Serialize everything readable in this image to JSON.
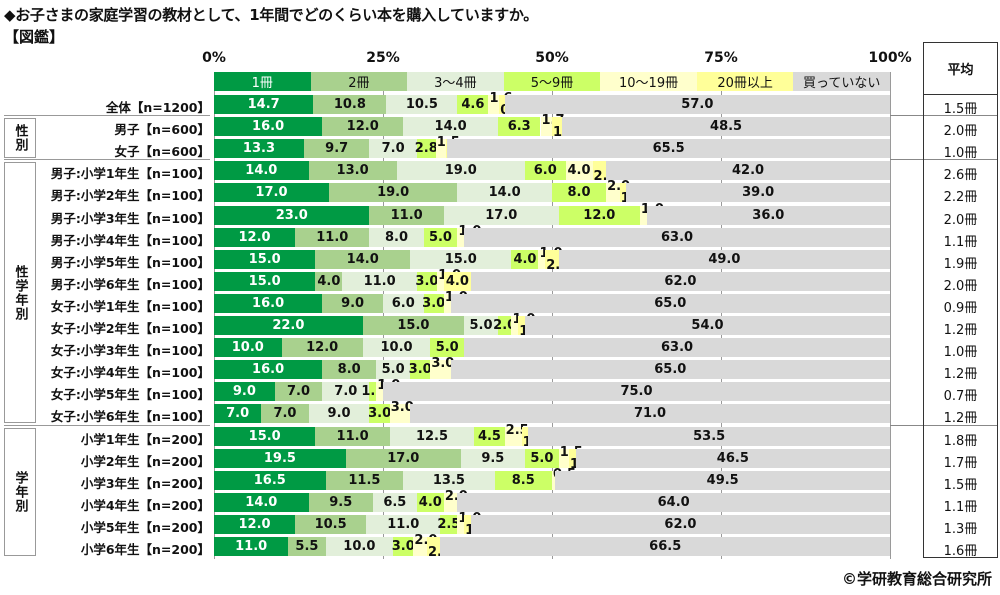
{
  "chart_data": {
    "type": "bar",
    "orientation": "horizontal-stacked-100",
    "title": "◆お子さまの家庭学習の教材として、1年間でどのくらい本を購入していますか。",
    "subtitle": "【図鑑】",
    "xlabel": "",
    "ylabel": "",
    "xlim": [
      0,
      100
    ],
    "x_ticks": [
      "0%",
      "25%",
      "50%",
      "75%",
      "100%"
    ],
    "grid": true,
    "legend_position": "top",
    "series": [
      {
        "name": "1冊",
        "color": "#009a44",
        "text_color": "#ffffff"
      },
      {
        "name": "2冊",
        "color": "#a9d18e",
        "text_color": "#111111"
      },
      {
        "name": "3～4冊",
        "color": "#e2efda",
        "text_color": "#111111"
      },
      {
        "name": "5～9冊",
        "color": "#ccff66",
        "text_color": "#111111"
      },
      {
        "name": "10～19冊",
        "color": "#ffffcc",
        "text_color": "#111111"
      },
      {
        "name": "20冊以上",
        "color": "#ffff99",
        "text_color": "#111111"
      },
      {
        "name": "買っていない",
        "color": "#d9d9d9",
        "text_color": "#111111"
      }
    ],
    "avg_header": "平均",
    "groups": [
      {
        "name": "",
        "rows": [
          0
        ]
      },
      {
        "name": "性別",
        "rows": [
          1,
          2
        ]
      },
      {
        "name": "性学年別",
        "rows": [
          3,
          4,
          5,
          6,
          7,
          8,
          9,
          10,
          11,
          12,
          13,
          14
        ]
      },
      {
        "name": "学年別",
        "rows": [
          15,
          16,
          17,
          18,
          19,
          20
        ]
      }
    ],
    "rows": [
      {
        "label": "全体【n=1200】",
        "values": [
          14.7,
          10.8,
          10.5,
          4.6,
          1.6,
          0.8,
          57.0
        ],
        "avg": "1.5冊"
      },
      {
        "label": "男子【n=600】",
        "values": [
          16.0,
          12.0,
          14.0,
          6.3,
          1.7,
          1.5,
          48.5
        ],
        "avg": "2.0冊"
      },
      {
        "label": "女子【n=600】",
        "values": [
          13.3,
          9.7,
          7.0,
          2.8,
          1.5,
          0.2,
          65.5
        ],
        "avg": "1.0冊"
      },
      {
        "label": "男子:小学1年生【n=100】",
        "values": [
          14.0,
          13.0,
          19.0,
          6.0,
          4.0,
          2.0,
          42.0
        ],
        "avg": "2.6冊"
      },
      {
        "label": "男子:小学2年生【n=100】",
        "values": [
          17.0,
          19.0,
          14.0,
          8.0,
          2.0,
          1.0,
          39.0
        ],
        "avg": "2.2冊"
      },
      {
        "label": "男子:小学3年生【n=100】",
        "values": [
          23.0,
          11.0,
          17.0,
          12.0,
          1.0,
          0.0,
          36.0
        ],
        "avg": "2.0冊"
      },
      {
        "label": "男子:小学4年生【n=100】",
        "values": [
          12.0,
          11.0,
          8.0,
          5.0,
          1.0,
          0.0,
          63.0
        ],
        "avg": "1.1冊"
      },
      {
        "label": "男子:小学5年生【n=100】",
        "values": [
          15.0,
          14.0,
          15.0,
          4.0,
          1.0,
          2.0,
          49.0
        ],
        "avg": "1.9冊"
      },
      {
        "label": "男子:小学6年生【n=100】",
        "values": [
          15.0,
          4.0,
          11.0,
          3.0,
          1.0,
          4.0,
          62.0
        ],
        "avg": "2.0冊"
      },
      {
        "label": "女子:小学1年生【n=100】",
        "values": [
          16.0,
          9.0,
          6.0,
          3.0,
          1.0,
          0.0,
          65.0
        ],
        "avg": "0.9冊"
      },
      {
        "label": "女子:小学2年生【n=100】",
        "values": [
          22.0,
          15.0,
          5.0,
          2.0,
          1.0,
          1.0,
          54.0
        ],
        "avg": "1.2冊"
      },
      {
        "label": "女子:小学3年生【n=100】",
        "values": [
          10.0,
          12.0,
          10.0,
          5.0,
          0.0,
          0.0,
          63.0
        ],
        "avg": "1.0冊"
      },
      {
        "label": "女子:小学4年生【n=100】",
        "values": [
          16.0,
          8.0,
          5.0,
          3.0,
          3.0,
          0.0,
          65.0
        ],
        "avg": "1.2冊"
      },
      {
        "label": "女子:小学5年生【n=100】",
        "values": [
          9.0,
          7.0,
          7.0,
          1.0,
          1.0,
          0.0,
          75.0
        ],
        "avg": "0.7冊"
      },
      {
        "label": "女子:小学6年生【n=100】",
        "values": [
          7.0,
          7.0,
          9.0,
          3.0,
          3.0,
          0.0,
          71.0
        ],
        "avg": "1.2冊"
      },
      {
        "label": "小学1年生【n=200】",
        "values": [
          15.0,
          11.0,
          12.5,
          4.5,
          2.5,
          1.0,
          53.5
        ],
        "avg": "1.8冊"
      },
      {
        "label": "小学2年生【n=200】",
        "values": [
          19.5,
          17.0,
          9.5,
          5.0,
          1.5,
          1.0,
          46.5
        ],
        "avg": "1.7冊"
      },
      {
        "label": "小学3年生【n=200】",
        "values": [
          16.5,
          11.5,
          13.5,
          8.5,
          0.5,
          0.0,
          49.5
        ],
        "avg": "1.5冊"
      },
      {
        "label": "小学4年生【n=200】",
        "values": [
          14.0,
          9.5,
          6.5,
          4.0,
          2.0,
          0.0,
          64.0
        ],
        "avg": "1.1冊"
      },
      {
        "label": "小学5年生【n=200】",
        "values": [
          12.0,
          10.5,
          11.0,
          2.5,
          1.0,
          1.0,
          62.0
        ],
        "avg": "1.3冊"
      },
      {
        "label": "小学6年生【n=200】",
        "values": [
          11.0,
          5.5,
          10.0,
          3.0,
          2.0,
          2.0,
          66.5
        ],
        "avg": "1.6冊"
      }
    ]
  },
  "credit": "©学研教育総合研究所"
}
